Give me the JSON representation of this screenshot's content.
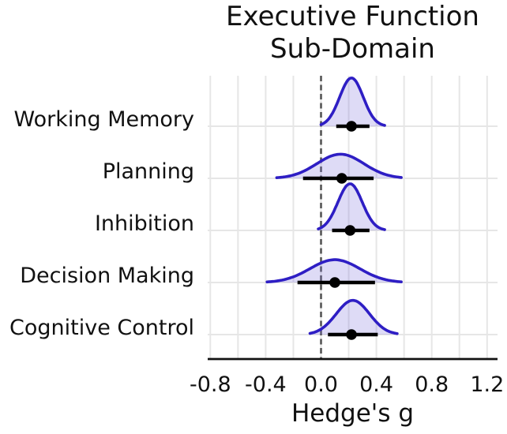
{
  "chart_data": {
    "type": "area",
    "variant": "ridgeline-forest-plot",
    "title": "Executive Function Sub-Domain",
    "title_lines": [
      "Executive Function",
      "Sub-Domain"
    ],
    "xlabel": "Hedge's g",
    "xlim": [
      -0.82,
      1.28
    ],
    "xticks": [
      -0.8,
      -0.4,
      0.0,
      0.4,
      0.8,
      1.2
    ],
    "xtick_labels": [
      "-0.8",
      "-0.4",
      "0.0",
      "0.4",
      "0.8",
      "1.2"
    ],
    "grid": true,
    "gridline_step": 0.2,
    "zero_reference_line": 0.0,
    "legend": "none",
    "rows": [
      {
        "label": "Working Memory",
        "estimate": 0.22,
        "ci_low": 0.11,
        "ci_high": 0.35,
        "density_mean": 0.22,
        "density_sd": 0.085,
        "density_range": [
          0.0,
          0.46
        ]
      },
      {
        "label": "Planning",
        "estimate": 0.15,
        "ci_low": -0.13,
        "ci_high": 0.38,
        "density_mean": 0.14,
        "density_sd": 0.17,
        "density_range": [
          -0.32,
          0.58
        ]
      },
      {
        "label": "Inhibition",
        "estimate": 0.21,
        "ci_low": 0.08,
        "ci_high": 0.35,
        "density_mean": 0.21,
        "density_sd": 0.088,
        "density_range": [
          -0.02,
          0.46
        ]
      },
      {
        "label": "Decision Making",
        "estimate": 0.1,
        "ci_low": -0.17,
        "ci_high": 0.39,
        "density_mean": 0.1,
        "density_sd": 0.18,
        "density_range": [
          -0.39,
          0.58
        ]
      },
      {
        "label": "Cognitive Control",
        "estimate": 0.22,
        "ci_low": 0.05,
        "ci_high": 0.41,
        "density_mean": 0.23,
        "density_sd": 0.12,
        "density_range": [
          -0.08,
          0.55
        ]
      }
    ],
    "colors": {
      "curve_stroke": "#2e1ec4",
      "curve_fill": "rgba(123,112,220,0.25)",
      "ci_and_point": "#000000",
      "gridline": "#e6e6e6",
      "zero_line": "#555555",
      "axis_line": "#111111",
      "text": "#111111"
    }
  }
}
